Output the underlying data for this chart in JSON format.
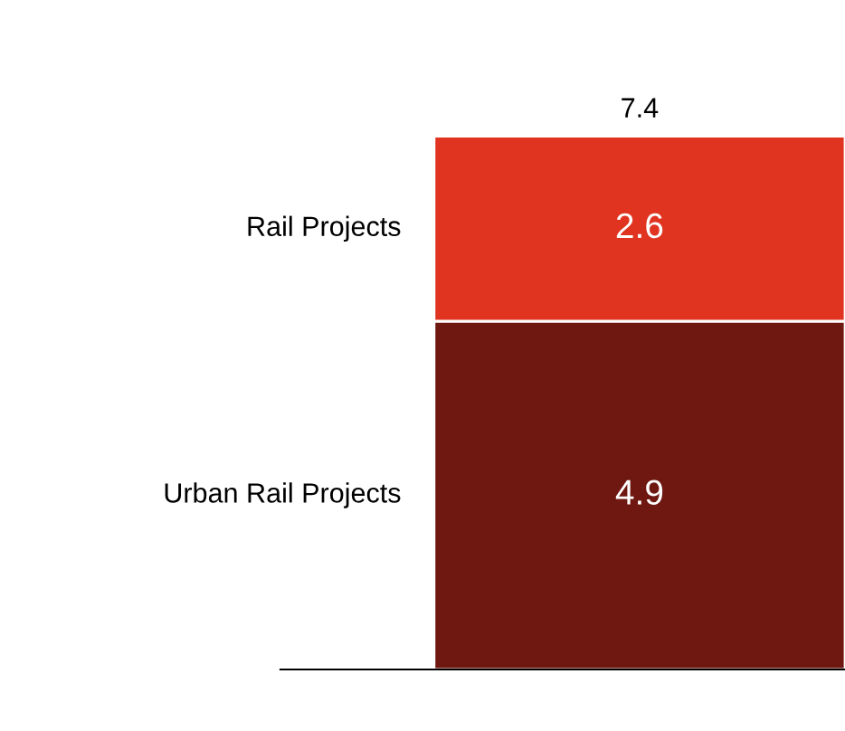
{
  "chart_data": {
    "type": "bar",
    "stacked": true,
    "categories": [
      null
    ],
    "series": [
      {
        "name": "Urban Rail Projects",
        "color": "#6e1811",
        "values": [
          4.9
        ]
      },
      {
        "name": "Rail Projects",
        "color": "#e03421",
        "values": [
          2.6
        ]
      }
    ],
    "data_labels": true,
    "totals": [
      "7.4"
    ],
    "legend": false
  }
}
